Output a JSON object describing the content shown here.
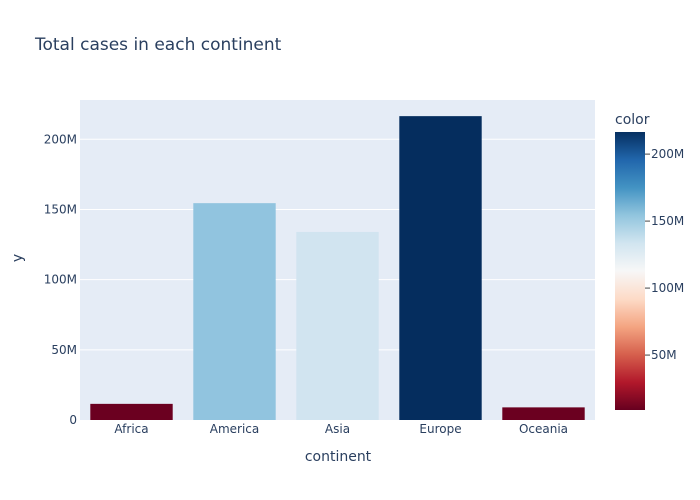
{
  "chart_data": {
    "type": "bar",
    "title": "Total cases in each continent",
    "xlabel": "continent",
    "ylabel": "y",
    "categories": [
      "Africa",
      "America",
      "Asia",
      "Europe",
      "Oceania"
    ],
    "values": [
      11500000,
      154500000,
      134000000,
      216500000,
      9000000
    ],
    "ylim": [
      0,
      228000000
    ],
    "yticks": [
      {
        "value": 0,
        "label": "0"
      },
      {
        "value": 50000000,
        "label": "50M"
      },
      {
        "value": 100000000,
        "label": "100M"
      },
      {
        "value": 150000000,
        "label": "150M"
      },
      {
        "value": 200000000,
        "label": "200M"
      }
    ],
    "grid": true,
    "legend": "colorbar-right",
    "colorbar": {
      "title": "color",
      "range": [
        9000000,
        216500000
      ],
      "ticks": [
        {
          "value": 50000000,
          "label": "50M"
        },
        {
          "value": 100000000,
          "label": "100M"
        },
        {
          "value": 150000000,
          "label": "150M"
        },
        {
          "value": 200000000,
          "label": "200M"
        }
      ],
      "colorscale": [
        "#67001f",
        "#b2182b",
        "#d6604d",
        "#f4a582",
        "#fddbc7",
        "#f7f7f7",
        "#d1e5f0",
        "#92c5de",
        "#4393c3",
        "#2166ac",
        "#053061"
      ]
    },
    "colors": {
      "plot_bg": "#e5ecf6",
      "grid": "#ffffff",
      "text": "#2a3f5f",
      "bars": [
        "#6b0020",
        "#91c4df",
        "#d1e4f0",
        "#052d5e",
        "#6b0020"
      ]
    }
  }
}
